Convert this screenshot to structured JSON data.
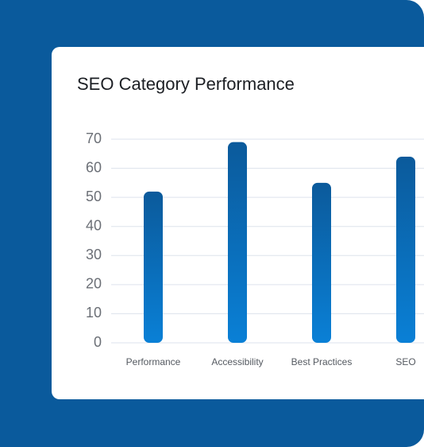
{
  "chart_data": {
    "type": "bar",
    "title": "SEO Category Performance",
    "categories": [
      "Performance",
      "Accessibility",
      "Best Practices",
      "SEO"
    ],
    "values": [
      52,
      69,
      55,
      64
    ],
    "color": [
      "#0b5a9b",
      "#0a80d6"
    ],
    "ylim": [
      0,
      70
    ],
    "yticks": [
      0,
      10,
      20,
      30,
      40,
      50,
      60,
      70
    ],
    "grid": true
  }
}
